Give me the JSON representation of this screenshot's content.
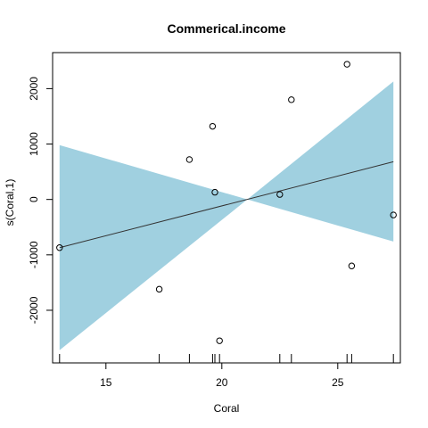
{
  "chart_data": {
    "type": "line",
    "title": "Commerical.income",
    "xlabel": "Coral",
    "ylabel": "s(Coral,1)",
    "xlim": [
      12.7,
      27.7
    ],
    "ylim": [
      -2950,
      2650
    ],
    "x_ticks": [
      15,
      20,
      25
    ],
    "y_ticks": [
      -2000,
      -1000,
      0,
      1000,
      2000
    ],
    "grid": false,
    "legend": "none",
    "band_color": "#a0d0e0",
    "line_color": "#333333",
    "fit_line": {
      "x": [
        13.0,
        27.4
      ],
      "y": [
        -870,
        680
      ]
    },
    "confidence_band": {
      "x": [
        13.0,
        21.1,
        27.4
      ],
      "upper": [
        980,
        0,
        2130
      ],
      "lower": [
        -2720,
        0,
        -760
      ]
    },
    "points": [
      {
        "x": 13.0,
        "y": -870
      },
      {
        "x": 17.3,
        "y": -1620
      },
      {
        "x": 18.6,
        "y": 720
      },
      {
        "x": 19.6,
        "y": 1320
      },
      {
        "x": 19.7,
        "y": 130
      },
      {
        "x": 19.9,
        "y": -2550
      },
      {
        "x": 22.5,
        "y": 90
      },
      {
        "x": 23.0,
        "y": 1800
      },
      {
        "x": 25.4,
        "y": 2440
      },
      {
        "x": 25.6,
        "y": -1200
      },
      {
        "x": 27.4,
        "y": -280
      }
    ],
    "rug": [
      13.0,
      17.3,
      18.6,
      19.6,
      19.7,
      19.9,
      22.5,
      23.0,
      25.4,
      25.6,
      27.4
    ]
  }
}
